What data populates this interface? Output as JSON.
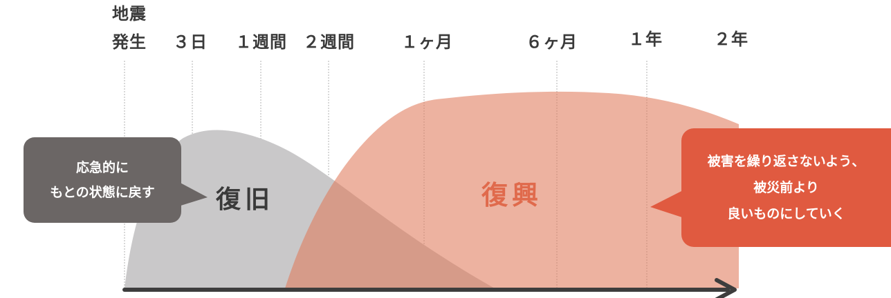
{
  "timeline": {
    "ticks": [
      {
        "line1": "地震",
        "line2": "発生"
      },
      {
        "line1": "",
        "line2": "３日"
      },
      {
        "line1": "",
        "line2": "１週間"
      },
      {
        "line1": "",
        "line2": "２週間"
      },
      {
        "line1": "",
        "line2": "１ヶ月"
      },
      {
        "line1": "",
        "line2": "６ヶ月"
      },
      {
        "line1": "",
        "line2": "１年"
      },
      {
        "line1": "",
        "line2": "２年"
      }
    ]
  },
  "phases": {
    "recovery": {
      "label": "復旧",
      "color": "#c9c8c9"
    },
    "reconstruction": {
      "label": "復興",
      "color": "#e07a5c",
      "label_color": "#e06a4c"
    }
  },
  "callouts": {
    "left": {
      "lines": [
        "応急的に",
        "もとの状態に戻す"
      ],
      "color": "#6b6665"
    },
    "right": {
      "lines": [
        "被害を繰り返さないよう、",
        "被災前より",
        "良いものにしていく"
      ],
      "color": "#e05a40"
    }
  },
  "colors": {
    "axis": "#3d3d3d",
    "divider": "#b0b0b0"
  }
}
